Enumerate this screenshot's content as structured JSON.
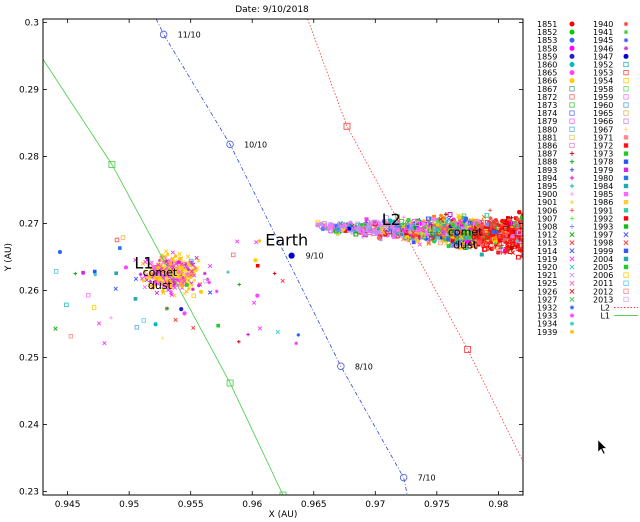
{
  "chart_data": {
    "type": "scatter",
    "title": "Date: 9/10/2018",
    "xlabel": "X (AU)",
    "ylabel": "Y (AU)",
    "xlim": [
      0.943,
      0.982
    ],
    "ylim": [
      0.2295,
      0.3005
    ],
    "x_ticks": [
      "0.945",
      "0.95",
      "0.955",
      "0.96",
      "0.965",
      "0.97",
      "0.975",
      "0.98"
    ],
    "y_ticks": [
      "0.23",
      "0.24",
      "0.25",
      "0.26",
      "0.27",
      "0.28",
      "0.29",
      "0.3"
    ],
    "grid": false,
    "legend_placement": "right-outside",
    "annotations": [
      {
        "text": "L1",
        "x": 0.9512,
        "y": 0.2633
      },
      {
        "text": "Earth",
        "x": 0.9628,
        "y": 0.2667
      },
      {
        "text": "L2",
        "x": 0.9713,
        "y": 0.2698
      },
      {
        "text": "comet",
        "x": 0.9525,
        "y": 0.2622,
        "multiline_with": "dust"
      },
      {
        "text": "comet",
        "x": 0.9773,
        "y": 0.2682,
        "multiline_with": "dust"
      }
    ],
    "dust_word": "dust",
    "earth": {
      "x": 0.9632,
      "y": 0.2652
    },
    "series": [
      {
        "name": "Earth",
        "style": "filled-circle",
        "color": "#0000cc"
      },
      {
        "name": "L2",
        "style": "dotted-line",
        "color": "#ff3333",
        "points": [
          [
            0.9645,
            0.3005
          ],
          [
            0.9677,
            0.2845
          ],
          [
            0.9775,
            0.2512
          ],
          [
            0.982,
            0.2345
          ]
        ]
      },
      {
        "name": "L1",
        "style": "solid-line",
        "color": "#44cc44",
        "points": [
          [
            0.943,
            0.2945
          ],
          [
            0.9486,
            0.2788
          ],
          [
            0.9582,
            0.2462
          ],
          [
            0.9625,
            0.2295
          ]
        ]
      },
      {
        "name": "",
        "style": "dash-dot-line",
        "color": "#3344cc",
        "points": [
          [
            0.9522,
            0.3005
          ],
          [
            0.9528,
            0.2982
          ],
          [
            0.9582,
            0.2818
          ],
          [
            0.9672,
            0.2487
          ],
          [
            0.9723,
            0.2321
          ],
          [
            0.9726,
            0.2295
          ]
        ]
      }
    ],
    "orbit_markers": [
      {
        "label": "11/10",
        "x": 0.9528,
        "y": 0.2982,
        "color": "#5566dd"
      },
      {
        "label": "10/10",
        "x": 0.9582,
        "y": 0.2818,
        "color": "#5566dd"
      },
      {
        "label": "9/10",
        "x": 0.9632,
        "y": 0.2652,
        "color": "#5566dd"
      },
      {
        "label": "8/10",
        "x": 0.9672,
        "y": 0.2487,
        "color": "#5566dd"
      },
      {
        "label": "7/10",
        "x": 0.9723,
        "y": 0.2321,
        "color": "#5566dd"
      }
    ],
    "legend_col1": [
      {
        "name": "1851",
        "marker": "filled-circle",
        "color": "#ff0000"
      },
      {
        "name": "1852",
        "marker": "filled-circle",
        "color": "#00cc00"
      },
      {
        "name": "1853",
        "marker": "filled-circle",
        "color": "#3366ff"
      },
      {
        "name": "1858",
        "marker": "filled-circle",
        "color": "#ff00ff"
      },
      {
        "name": "1859",
        "marker": "filled-circle",
        "color": "#2222cc"
      },
      {
        "name": "1860",
        "marker": "filled-circle",
        "color": "#00bbbb"
      },
      {
        "name": "1865",
        "marker": "filled-circle",
        "color": "#ff44ff"
      },
      {
        "name": "1866",
        "marker": "filled-circle",
        "color": "#ffcc00"
      },
      {
        "name": "1867",
        "marker": "open-square",
        "color": "#55aa88"
      },
      {
        "name": "1872",
        "marker": "open-square",
        "color": "#ff6666"
      },
      {
        "name": "1873",
        "marker": "open-square",
        "color": "#44cc44"
      },
      {
        "name": "1874",
        "marker": "open-square",
        "color": "#6677ff"
      },
      {
        "name": "1879",
        "marker": "open-square",
        "color": "#ff66ff"
      },
      {
        "name": "1880",
        "marker": "open-square",
        "color": "#55bbdd"
      },
      {
        "name": "1881",
        "marker": "open-square",
        "color": "#ddcc66"
      },
      {
        "name": "1886",
        "marker": "open-square",
        "color": "#dd88dd"
      },
      {
        "name": "1887",
        "marker": "plus",
        "color": "#cc0000"
      },
      {
        "name": "1888",
        "marker": "plus",
        "color": "#00aa00"
      },
      {
        "name": "1893",
        "marker": "plus",
        "color": "#2244ee"
      },
      {
        "name": "1894",
        "marker": "plus",
        "color": "#cc00cc"
      },
      {
        "name": "1895",
        "marker": "plus",
        "color": "#22aaaa"
      },
      {
        "name": "1900",
        "marker": "plus",
        "color": "#ff99ff"
      },
      {
        "name": "1901",
        "marker": "plus",
        "color": "#ffcc33"
      },
      {
        "name": "1906",
        "marker": "plus",
        "color": "#ff5555"
      },
      {
        "name": "1907",
        "marker": "plus",
        "color": "#55ee55"
      },
      {
        "name": "1908",
        "marker": "plus",
        "color": "#8888ff"
      },
      {
        "name": "1912",
        "marker": "cross",
        "color": "#00aa00"
      },
      {
        "name": "1913",
        "marker": "cross",
        "color": "#ff3333"
      },
      {
        "name": "1914",
        "marker": "cross",
        "color": "#3355ff"
      },
      {
        "name": "1919",
        "marker": "cross",
        "color": "#ff33ff"
      },
      {
        "name": "1920",
        "marker": "cross",
        "color": "#33cccc"
      },
      {
        "name": "1921",
        "marker": "cross",
        "color": "#cc99ff"
      },
      {
        "name": "1925",
        "marker": "cross",
        "color": "#ff66cc"
      },
      {
        "name": "1926",
        "marker": "cross",
        "color": "#ee2222"
      },
      {
        "name": "1927",
        "marker": "cross",
        "color": "#44cc44"
      },
      {
        "name": "1932",
        "marker": "asterisk",
        "color": "#3366ff"
      },
      {
        "name": "1933",
        "marker": "asterisk",
        "color": "#ff33ff"
      },
      {
        "name": "1934",
        "marker": "asterisk",
        "color": "#33cccc"
      },
      {
        "name": "1939",
        "marker": "asterisk",
        "color": "#ffbb00"
      }
    ],
    "legend_col2": [
      {
        "name": "1940",
        "marker": "asterisk",
        "color": "#ff3333"
      },
      {
        "name": "1941",
        "marker": "asterisk",
        "color": "#33cc33"
      },
      {
        "name": "1945",
        "marker": "asterisk",
        "color": "#3355ff"
      },
      {
        "name": "1946",
        "marker": "asterisk",
        "color": "#cc33cc"
      },
      {
        "name": "1947",
        "marker": "filled-circle",
        "color": "#0000dd"
      },
      {
        "name": "1952",
        "marker": "open-square",
        "color": "#22bbbb"
      },
      {
        "name": "1953",
        "marker": "open-square",
        "color": "#ff4444"
      },
      {
        "name": "1954",
        "marker": "open-square",
        "color": "#ffcc00"
      },
      {
        "name": "1958",
        "marker": "open-square",
        "color": "#66dd66"
      },
      {
        "name": "1959",
        "marker": "open-square",
        "color": "#ff77ff"
      },
      {
        "name": "1960",
        "marker": "open-square",
        "color": "#55aadd"
      },
      {
        "name": "1965",
        "marker": "open-square",
        "color": "#ddbb55"
      },
      {
        "name": "1966",
        "marker": "open-square",
        "color": "#cc88ee"
      },
      {
        "name": "1967",
        "marker": "plus",
        "color": "#ffdd88"
      },
      {
        "name": "1971",
        "marker": "filled-square",
        "color": "#ff8888"
      },
      {
        "name": "1972",
        "marker": "filled-square",
        "color": "#ff1111"
      },
      {
        "name": "1973",
        "marker": "filled-square",
        "color": "#22cc22"
      },
      {
        "name": "1978",
        "marker": "filled-square",
        "color": "#2255ff"
      },
      {
        "name": "1979",
        "marker": "filled-square",
        "color": "#dd22dd"
      },
      {
        "name": "1980",
        "marker": "filled-square",
        "color": "#2277ee"
      },
      {
        "name": "1984",
        "marker": "filled-square",
        "color": "#22aaaa"
      },
      {
        "name": "1985",
        "marker": "filled-square",
        "color": "#ff66ff"
      },
      {
        "name": "1986",
        "marker": "filled-square",
        "color": "#ffcc33"
      },
      {
        "name": "1991",
        "marker": "filled-square",
        "color": "#33ccaa"
      },
      {
        "name": "1992",
        "marker": "filled-square",
        "color": "#ff0000"
      },
      {
        "name": "1993",
        "marker": "filled-square",
        "color": "#11bb11"
      },
      {
        "name": "1997",
        "marker": "cross",
        "color": "#3344ff"
      },
      {
        "name": "1998",
        "marker": "cross",
        "color": "#ff3333"
      },
      {
        "name": "1999",
        "marker": "filled-square",
        "color": "#3355ff"
      },
      {
        "name": "2004",
        "marker": "filled-square",
        "color": "#22aaaa"
      },
      {
        "name": "2005",
        "marker": "filled-square",
        "color": "#22cc22"
      },
      {
        "name": "2006",
        "marker": "open-square",
        "color": "#ffcc00"
      },
      {
        "name": "2011",
        "marker": "open-square",
        "color": "#55ccee"
      },
      {
        "name": "2012",
        "marker": "open-square",
        "color": "#ff8888"
      },
      {
        "name": "2013",
        "marker": "open-square",
        "color": "#ddaaff"
      }
    ]
  }
}
